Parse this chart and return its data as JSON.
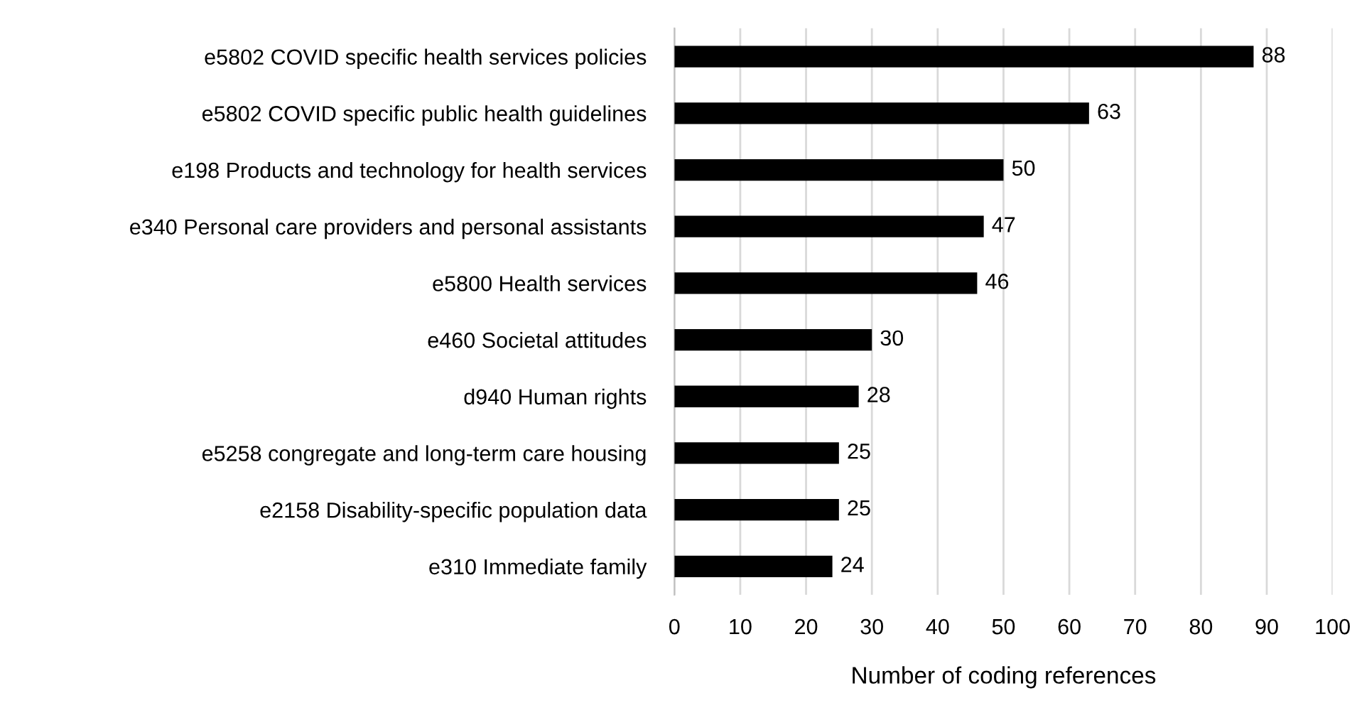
{
  "chart_data": {
    "type": "bar",
    "orientation": "horizontal",
    "categories": [
      "e5802 COVID specific health services policies",
      "e5802 COVID specific public health guidelines",
      "e198 Products and technology for health services",
      "e340 Personal care providers and personal assistants",
      "e5800 Health services",
      "e460 Societal attitudes",
      "d940 Human rights",
      "e5258 congregate and long-term care housing",
      "e2158 Disability-specific population data",
      "e310 Immediate family"
    ],
    "values": [
      88,
      63,
      50,
      47,
      46,
      30,
      28,
      25,
      25,
      24
    ],
    "color": "#000000",
    "xlabel": "Number of coding references",
    "xlim": [
      0,
      100
    ],
    "xticks": [
      0,
      10,
      20,
      30,
      40,
      50,
      60,
      70,
      80,
      90,
      100
    ],
    "grid": "x",
    "data_labels": true
  }
}
